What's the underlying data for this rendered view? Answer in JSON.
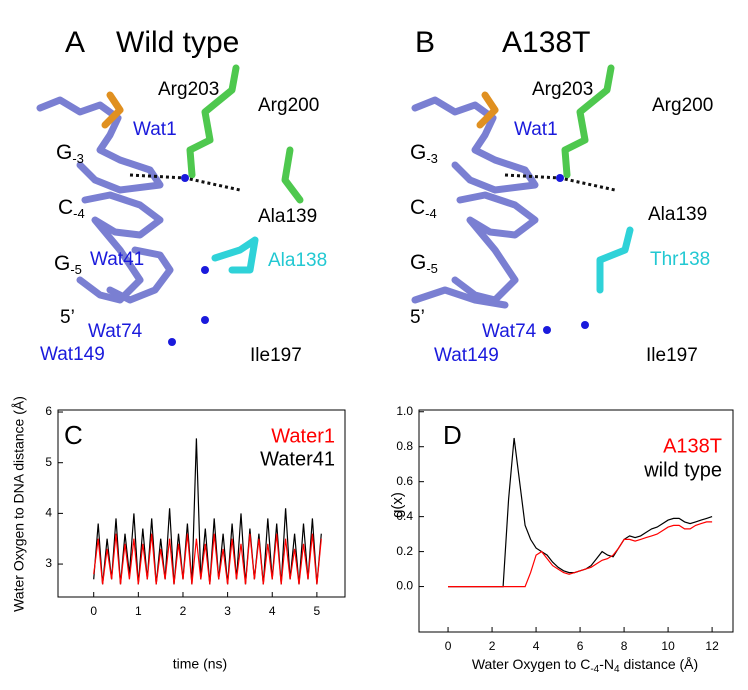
{
  "structures": [
    {
      "letter": "A",
      "title": "Wild type",
      "labels": [
        {
          "text": "Arg203",
          "color": "#000000"
        },
        {
          "text": "Arg200",
          "color": "#000000"
        },
        {
          "text": "Wat1",
          "color": "#1a1adc"
        },
        {
          "base": "G",
          "sub": "-3",
          "color": "#000000"
        },
        {
          "base": "C",
          "sub": "-4",
          "color": "#000000"
        },
        {
          "text": "Ala139",
          "color": "#000000"
        },
        {
          "text": "Wat41",
          "color": "#1a1adc"
        },
        {
          "text": "Ala138",
          "color": "#22c8d2"
        },
        {
          "base": "G",
          "sub": "-5",
          "color": "#000000"
        },
        {
          "text": "5’",
          "color": "#000000"
        },
        {
          "text": "Wat74",
          "color": "#1a1adc"
        },
        {
          "text": "Wat149",
          "color": "#1a1adc"
        },
        {
          "text": "Ile197",
          "color": "#000000"
        }
      ]
    },
    {
      "letter": "B",
      "title": "A138T",
      "labels": [
        {
          "text": "Arg203",
          "color": "#000000"
        },
        {
          "text": "Arg200",
          "color": "#000000"
        },
        {
          "text": "Wat1",
          "color": "#1a1adc"
        },
        {
          "base": "G",
          "sub": "-3",
          "color": "#000000"
        },
        {
          "base": "C",
          "sub": "-4",
          "color": "#000000"
        },
        {
          "text": "Ala139",
          "color": "#000000"
        },
        {
          "text": "Thr138",
          "color": "#22c8d2"
        },
        {
          "base": "G",
          "sub": "-5",
          "color": "#000000"
        },
        {
          "text": "5’",
          "color": "#000000"
        },
        {
          "text": "Wat74",
          "color": "#1a1adc"
        },
        {
          "text": "Wat149",
          "color": "#1a1adc"
        },
        {
          "text": "Ile197",
          "color": "#000000"
        }
      ]
    }
  ],
  "chart_data": [
    {
      "type": "line",
      "letter": "C",
      "x_label": "time (ns)",
      "y_label": "Water Oxygen to DNA distance (Å)",
      "x": [
        0,
        0.1,
        0.2,
        0.3,
        0.4,
        0.5,
        0.6,
        0.7,
        0.8,
        0.9,
        1.0,
        1.1,
        1.2,
        1.3,
        1.4,
        1.5,
        1.6,
        1.7,
        1.8,
        1.9,
        2.0,
        2.1,
        2.2,
        2.3,
        2.4,
        2.5,
        2.6,
        2.7,
        2.8,
        2.9,
        3.0,
        3.1,
        3.2,
        3.3,
        3.4,
        3.5,
        3.6,
        3.7,
        3.8,
        3.9,
        4.0,
        4.1,
        4.2,
        4.3,
        4.4,
        4.5,
        4.6,
        4.7,
        4.8,
        4.9,
        5.0,
        5.1
      ],
      "series": [
        {
          "name": "Water41",
          "color": "#000000",
          "values": [
            2.7,
            3.8,
            2.6,
            3.5,
            2.7,
            3.9,
            2.6,
            3.6,
            2.8,
            4.0,
            2.6,
            3.7,
            2.7,
            3.9,
            2.6,
            3.5,
            2.7,
            4.1,
            2.6,
            3.6,
            2.7,
            3.8,
            2.6,
            5.48,
            2.7,
            3.7,
            2.6,
            3.9,
            2.7,
            3.6,
            2.6,
            3.8,
            2.7,
            4.0,
            2.6,
            3.7,
            2.7,
            3.6,
            2.6,
            3.9,
            2.7,
            3.8,
            2.6,
            4.1,
            2.7,
            3.6,
            2.6,
            3.8,
            2.7,
            3.9,
            2.6,
            3.6
          ]
        },
        {
          "name": "Water1",
          "color": "#ff0000",
          "values": [
            2.8,
            3.5,
            2.6,
            3.3,
            2.7,
            3.6,
            2.6,
            3.4,
            2.7,
            3.5,
            2.6,
            3.4,
            2.7,
            3.6,
            2.6,
            3.3,
            2.7,
            3.5,
            2.6,
            3.4,
            2.7,
            3.6,
            2.6,
            3.5,
            2.7,
            3.4,
            2.6,
            3.6,
            2.7,
            3.3,
            2.6,
            3.5,
            2.7,
            3.4,
            2.6,
            3.6,
            2.7,
            3.5,
            2.6,
            3.4,
            2.7,
            3.6,
            2.6,
            3.5,
            2.7,
            3.3,
            2.6,
            3.4,
            2.7,
            3.6,
            2.6,
            3.5
          ]
        }
      ],
      "xlim": [
        -0.8,
        5.63
      ],
      "ylim": [
        2.35,
        6.04
      ],
      "xticks": [
        0,
        1,
        2,
        3,
        4,
        5
      ],
      "yticks": [
        3,
        4,
        5,
        6
      ]
    },
    {
      "type": "line",
      "letter": "D",
      "x_label": [
        "Water Oxygen to C",
        "-4",
        "-N",
        "4",
        " distance (Å)"
      ],
      "y_label": "g(x)",
      "x": [
        0,
        0.25,
        0.5,
        0.75,
        1,
        1.25,
        1.5,
        1.75,
        2,
        2.25,
        2.5,
        2.75,
        3,
        3.25,
        3.5,
        3.75,
        4,
        4.25,
        4.5,
        4.75,
        5,
        5.25,
        5.5,
        5.75,
        6,
        6.25,
        6.5,
        6.75,
        7,
        7.25,
        7.5,
        7.75,
        8,
        8.25,
        8.5,
        8.75,
        9,
        9.25,
        9.5,
        9.75,
        10,
        10.25,
        10.5,
        10.75,
        11,
        11.25,
        11.5,
        11.75,
        12
      ],
      "series": [
        {
          "name": "wild type",
          "color": "#000000",
          "values": [
            0,
            0,
            0,
            0,
            0,
            0,
            0,
            0,
            0,
            0,
            0,
            0.5,
            0.85,
            0.6,
            0.35,
            0.27,
            0.22,
            0.2,
            0.18,
            0.14,
            0.11,
            0.09,
            0.08,
            0.08,
            0.09,
            0.1,
            0.12,
            0.16,
            0.2,
            0.18,
            0.17,
            0.22,
            0.27,
            0.29,
            0.28,
            0.29,
            0.31,
            0.33,
            0.34,
            0.36,
            0.38,
            0.39,
            0.39,
            0.37,
            0.36,
            0.37,
            0.38,
            0.39,
            0.4
          ]
        },
        {
          "name": "A138T",
          "color": "#ff0000",
          "values": [
            0,
            0,
            0,
            0,
            0,
            0,
            0,
            0,
            0,
            0,
            0,
            0,
            0,
            0,
            0,
            0.08,
            0.18,
            0.2,
            0.16,
            0.12,
            0.1,
            0.08,
            0.07,
            0.08,
            0.09,
            0.1,
            0.11,
            0.13,
            0.15,
            0.16,
            0.18,
            0.22,
            0.27,
            0.27,
            0.26,
            0.27,
            0.28,
            0.29,
            0.3,
            0.32,
            0.34,
            0.35,
            0.35,
            0.33,
            0.33,
            0.35,
            0.36,
            0.37,
            0.37
          ]
        }
      ],
      "xlim": [
        -1.32,
        12.95
      ],
      "ylim": [
        -0.26,
        1.01
      ],
      "xticks": [
        0,
        2,
        4,
        6,
        8,
        10,
        12
      ],
      "yticks": [
        {
          "value": 0,
          "label": "0.0"
        },
        0.2,
        0.4,
        0.6,
        0.8,
        {
          "value": 1,
          "label": "1.0"
        }
      ]
    }
  ]
}
